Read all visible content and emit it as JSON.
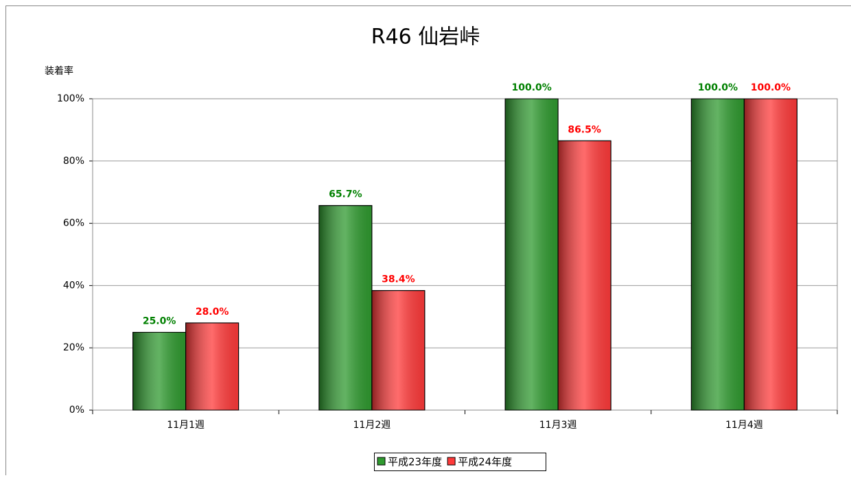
{
  "chart_data": {
    "type": "bar",
    "title": "R46 仙岩峠",
    "y_label": "装着率",
    "categories": [
      "11月1週",
      "11月2週",
      "11月3週",
      "11月4週"
    ],
    "series": [
      {
        "name": "平成23年度",
        "color": "#2f9a2f",
        "label_color": "#008000",
        "values": [
          25.0,
          65.7,
          100.0,
          100.0
        ],
        "value_labels": [
          "25.0%",
          "65.7%",
          "100.0%",
          "100.0%"
        ]
      },
      {
        "name": "平成24年度",
        "color": "#ff3a3a",
        "label_color": "#ff0000",
        "values": [
          28.0,
          38.4,
          86.5,
          100.0
        ],
        "value_labels": [
          "28.0%",
          "38.4%",
          "86.5%",
          "100.0%"
        ]
      }
    ],
    "ylim": [
      0,
      100
    ],
    "yticks": [
      {
        "value": 0,
        "label": "0%"
      },
      {
        "value": 20,
        "label": "20%"
      },
      {
        "value": 40,
        "label": "40%"
      },
      {
        "value": 60,
        "label": "60%"
      },
      {
        "value": 80,
        "label": "80%"
      },
      {
        "value": 100,
        "label": "100%"
      }
    ],
    "grid": true
  }
}
